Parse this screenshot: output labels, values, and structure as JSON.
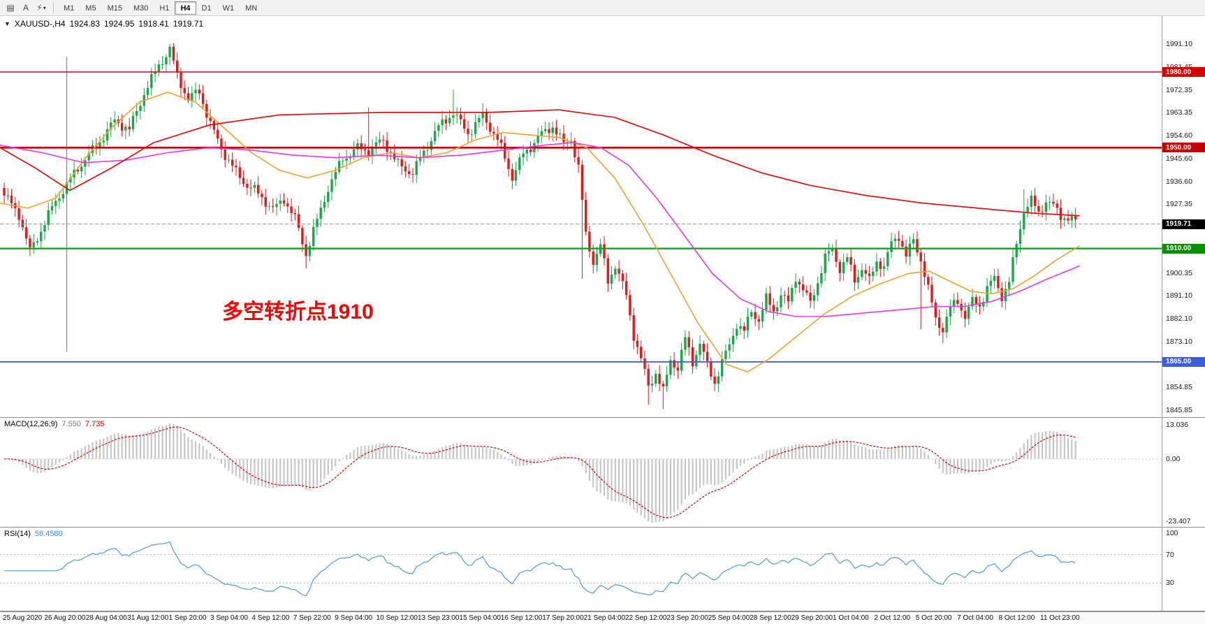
{
  "toolbar": {
    "tools": [
      {
        "name": "charts-grid-icon",
        "glyph": "▤"
      },
      {
        "name": "text-annotate-icon",
        "glyph": "A"
      },
      {
        "name": "cursor-flash-icon",
        "glyph": "⚡"
      }
    ],
    "dropdown_caret": "▾",
    "timeframes": [
      "M1",
      "M5",
      "M15",
      "M30",
      "H1",
      "H4",
      "D1",
      "W1",
      "MN"
    ],
    "active_timeframe": "H4"
  },
  "chart_header": {
    "collapse_icon": "▼",
    "symbol": "XAUUSD-,H4",
    "open": "1924.83",
    "high": "1924.95",
    "low": "1918.41",
    "close": "1919.71"
  },
  "annotation": {
    "text": "多空转折点1910",
    "color": "#ff0000"
  },
  "macd_header": {
    "label": "MACD(12,26,9)",
    "main_value": "7.550",
    "signal_value": "7.735"
  },
  "rsi_header": {
    "label": "RSI(14)",
    "value": "58.4580"
  },
  "chart_data": {
    "type": "candlestick",
    "symbol": "XAUUSD-",
    "timeframe": "H4",
    "bars": 292,
    "colors": {
      "bull": "#18a848",
      "bear": "#e61717",
      "ma_fast": "#eea32c",
      "ma_mid": "#e836e8",
      "ma_slow": "#e60000",
      "bid_line": "#9a9a9a",
      "macd_hist": "#c6c6c6",
      "macd_signal": "#d40000",
      "rsi_line": "#4d9ddd",
      "level_dotted": "#b8b8b8"
    },
    "price_axis": {
      "max": 1991.1,
      "min": 1845.85,
      "labels": [
        "1991.10",
        "1981.45",
        "1972.35",
        "1963.35",
        "1954.60",
        "1945.60",
        "1936.60",
        "1927.35",
        "1918.35",
        "1909.35",
        "1900.35",
        "1891.10",
        "1882.10",
        "1873.10",
        "1864.10",
        "1854.85",
        "1845.85"
      ]
    },
    "hlines": [
      {
        "price": 1980.0,
        "label": "1980.00",
        "color": "#e60000",
        "width": 1.5,
        "badge_bg": "#d40000"
      },
      {
        "price": 1950.0,
        "label": "1950.00",
        "color": "#c40000",
        "width": 2.6,
        "badge_bg": "#c40000"
      },
      {
        "price": 1910.0,
        "label": "1910.00",
        "color": "#07a01e",
        "width": 2.2,
        "badge_bg": "#089000"
      },
      {
        "price": 1865.0,
        "label": "1865.00",
        "color": "#3c5cd8",
        "width": 1.8,
        "badge_bg": "#3c5cd8"
      }
    ],
    "bid": {
      "value": 1919.71,
      "label": "1919.71",
      "badge_bg": "#000000"
    },
    "close_waypoints": [
      [
        0,
        1930
      ],
      [
        4,
        1924
      ],
      [
        7,
        1910
      ],
      [
        10,
        1918
      ],
      [
        14,
        1928
      ],
      [
        17,
        1934
      ],
      [
        20,
        1942
      ],
      [
        25,
        1952
      ],
      [
        30,
        1960
      ],
      [
        34,
        1956
      ],
      [
        38,
        1972
      ],
      [
        42,
        1984
      ],
      [
        45,
        1989
      ],
      [
        47,
        1978
      ],
      [
        50,
        1968
      ],
      [
        53,
        1972
      ],
      [
        56,
        1960
      ],
      [
        60,
        1948
      ],
      [
        63,
        1940
      ],
      [
        66,
        1934
      ],
      [
        70,
        1930
      ],
      [
        73,
        1926
      ],
      [
        76,
        1931
      ],
      [
        79,
        1922
      ],
      [
        82,
        1907
      ],
      [
        85,
        1920
      ],
      [
        88,
        1934
      ],
      [
        92,
        1947
      ],
      [
        96,
        1950
      ],
      [
        99,
        1948
      ],
      [
        103,
        1952
      ],
      [
        107,
        1944
      ],
      [
        111,
        1941
      ],
      [
        114,
        1948
      ],
      [
        117,
        1955
      ],
      [
        122,
        1964
      ],
      [
        126,
        1957
      ],
      [
        130,
        1963
      ],
      [
        134,
        1952
      ],
      [
        138,
        1938
      ],
      [
        141,
        1948
      ],
      [
        145,
        1955
      ],
      [
        149,
        1958
      ],
      [
        152,
        1950
      ],
      [
        154,
        1953
      ],
      [
        156,
        1942
      ],
      [
        158,
        1916
      ],
      [
        160,
        1906
      ],
      [
        162,
        1912
      ],
      [
        164,
        1897
      ],
      [
        166,
        1903
      ],
      [
        169,
        1890
      ],
      [
        171,
        1875
      ],
      [
        173,
        1866
      ],
      [
        175,
        1856
      ],
      [
        177,
        1862
      ],
      [
        179,
        1854
      ],
      [
        181,
        1866
      ],
      [
        183,
        1862
      ],
      [
        185,
        1873
      ],
      [
        187,
        1864
      ],
      [
        189,
        1872
      ],
      [
        191,
        1864
      ],
      [
        193,
        1858
      ],
      [
        195,
        1866
      ],
      [
        197,
        1872
      ],
      [
        199,
        1880
      ],
      [
        201,
        1876
      ],
      [
        203,
        1884
      ],
      [
        205,
        1881
      ],
      [
        207,
        1890
      ],
      [
        209,
        1886
      ],
      [
        211,
        1893
      ],
      [
        213,
        1889
      ],
      [
        215,
        1899
      ],
      [
        217,
        1893
      ],
      [
        219,
        1887
      ],
      [
        221,
        1896
      ],
      [
        223,
        1906
      ],
      [
        225,
        1910
      ],
      [
        227,
        1903
      ],
      [
        229,
        1907
      ],
      [
        231,
        1898
      ],
      [
        233,
        1902
      ],
      [
        235,
        1896
      ],
      [
        237,
        1904
      ],
      [
        239,
        1902
      ],
      [
        241,
        1912
      ],
      [
        243,
        1916
      ],
      [
        245,
        1908
      ],
      [
        247,
        1914
      ],
      [
        249,
        1906
      ],
      [
        251,
        1893
      ],
      [
        253,
        1881
      ],
      [
        255,
        1877
      ],
      [
        257,
        1886
      ],
      [
        259,
        1890
      ],
      [
        261,
        1884
      ],
      [
        263,
        1890
      ],
      [
        265,
        1888
      ],
      [
        267,
        1894
      ],
      [
        269,
        1897
      ],
      [
        271,
        1890
      ],
      [
        273,
        1896
      ],
      [
        275,
        1912
      ],
      [
        277,
        1926
      ],
      [
        279,
        1930
      ],
      [
        281,
        1925
      ],
      [
        283,
        1929
      ],
      [
        285,
        1926
      ],
      [
        287,
        1922
      ],
      [
        289,
        1921
      ],
      [
        291,
        1920
      ]
    ],
    "spikes": [
      {
        "bar": 17,
        "high": 1986,
        "low": 1869
      },
      {
        "bar": 45,
        "high": 1991.1
      },
      {
        "bar": 82,
        "low": 1902
      },
      {
        "bar": 99,
        "high": 1966
      },
      {
        "bar": 122,
        "high": 1973
      },
      {
        "bar": 157,
        "low": 1898
      },
      {
        "bar": 175,
        "low": 1848
      },
      {
        "bar": 179,
        "low": 1846.3
      },
      {
        "bar": 249,
        "low": 1878
      },
      {
        "bar": 255,
        "low": 1872.5
      },
      {
        "bar": 277,
        "high": 1933.5
      }
    ],
    "moving_averages": [
      {
        "name": "ma-fast-orange",
        "color": "#eea32c",
        "points": [
          [
            0,
            1928
          ],
          [
            40,
            1926
          ],
          [
            80,
            1930
          ],
          [
            120,
            1945
          ],
          [
            160,
            1958
          ],
          [
            200,
            1968
          ],
          [
            240,
            1972
          ],
          [
            280,
            1968
          ],
          [
            320,
            1958
          ],
          [
            360,
            1948
          ],
          [
            400,
            1941
          ],
          [
            440,
            1938
          ],
          [
            480,
            1941
          ],
          [
            520,
            1946
          ],
          [
            560,
            1948
          ],
          [
            600,
            1946
          ],
          [
            640,
            1948
          ],
          [
            680,
            1953
          ],
          [
            720,
            1956
          ],
          [
            760,
            1955
          ],
          [
            800,
            1954
          ],
          [
            840,
            1950
          ],
          [
            880,
            1938
          ],
          [
            920,
            1920
          ],
          [
            960,
            1900
          ],
          [
            1000,
            1880
          ],
          [
            1040,
            1864
          ],
          [
            1070,
            1861
          ],
          [
            1100,
            1866
          ],
          [
            1140,
            1875
          ],
          [
            1180,
            1884
          ],
          [
            1220,
            1891
          ],
          [
            1260,
            1896
          ],
          [
            1300,
            1900
          ],
          [
            1330,
            1901
          ],
          [
            1360,
            1897
          ],
          [
            1390,
            1893
          ],
          [
            1420,
            1892
          ],
          [
            1450,
            1894
          ],
          [
            1480,
            1899
          ],
          [
            1510,
            1905
          ],
          [
            1545,
            1911
          ]
        ]
      },
      {
        "name": "ma-mid-magenta",
        "color": "#e836e8",
        "points": [
          [
            0,
            1951
          ],
          [
            60,
            1948
          ],
          [
            120,
            1944
          ],
          [
            180,
            1945
          ],
          [
            240,
            1948
          ],
          [
            300,
            1950
          ],
          [
            360,
            1949
          ],
          [
            420,
            1947
          ],
          [
            480,
            1946
          ],
          [
            540,
            1947
          ],
          [
            600,
            1946
          ],
          [
            660,
            1947
          ],
          [
            720,
            1949
          ],
          [
            780,
            1951
          ],
          [
            820,
            1952
          ],
          [
            860,
            1950
          ],
          [
            900,
            1943
          ],
          [
            940,
            1930
          ],
          [
            980,
            1915
          ],
          [
            1020,
            1900
          ],
          [
            1060,
            1890
          ],
          [
            1100,
            1885
          ],
          [
            1140,
            1883
          ],
          [
            1180,
            1883
          ],
          [
            1220,
            1884
          ],
          [
            1260,
            1885
          ],
          [
            1300,
            1886
          ],
          [
            1340,
            1887
          ],
          [
            1380,
            1887
          ],
          [
            1420,
            1889
          ],
          [
            1460,
            1893
          ],
          [
            1500,
            1898
          ],
          [
            1545,
            1903
          ]
        ]
      },
      {
        "name": "ma-slow-red",
        "color": "#e60000",
        "points": [
          [
            0,
            1950
          ],
          [
            50,
            1942
          ],
          [
            100,
            1933
          ],
          [
            160,
            1942
          ],
          [
            220,
            1952
          ],
          [
            300,
            1959
          ],
          [
            400,
            1963
          ],
          [
            550,
            1964
          ],
          [
            700,
            1964
          ],
          [
            800,
            1965
          ],
          [
            880,
            1962
          ],
          [
            950,
            1955
          ],
          [
            1020,
            1947
          ],
          [
            1090,
            1940
          ],
          [
            1160,
            1935
          ],
          [
            1240,
            1931
          ],
          [
            1320,
            1928
          ],
          [
            1400,
            1926
          ],
          [
            1480,
            1924
          ],
          [
            1545,
            1923
          ]
        ]
      }
    ],
    "macd": {
      "label": "MACD(12,26,9)",
      "fast": 12,
      "slow": 26,
      "signal": 9,
      "current_main": 7.55,
      "current_signal": 7.735,
      "scale_max": 13.036,
      "scale_min": -23.407,
      "axis_labels": [
        "13.036",
        "0.00",
        "-23.407"
      ]
    },
    "rsi": {
      "label": "RSI(14)",
      "period": 14,
      "current": 58.458,
      "levels": [
        70,
        30
      ],
      "axis_labels": [
        "100",
        "70",
        "30"
      ]
    },
    "time_labels": [
      "25 Aug 2020",
      "26 Aug 20:00",
      "28 Aug 04:00",
      "31 Aug 12:00",
      "1 Sep 20:00",
      "3 Sep 04:00",
      "4 Sep 12:00",
      "7 Sep 22:00",
      "9 Sep 04:00",
      "10 Sep 12:00",
      "13 Sep 23:00",
      "15 Sep 04:00",
      "16 Sep 12:00",
      "17 Sep 20:00",
      "21 Sep 04:00",
      "22 Sep 12:00",
      "23 Sep 20:00",
      "25 Sep 04:00",
      "28 Sep 12:00",
      "29 Sep 20:00",
      "1 Oct 04:00",
      "2 Oct 12:00",
      "5 Oct 20:00",
      "7 Oct 04:00",
      "8 Oct 12:00",
      "11 Oct 23:00"
    ]
  }
}
